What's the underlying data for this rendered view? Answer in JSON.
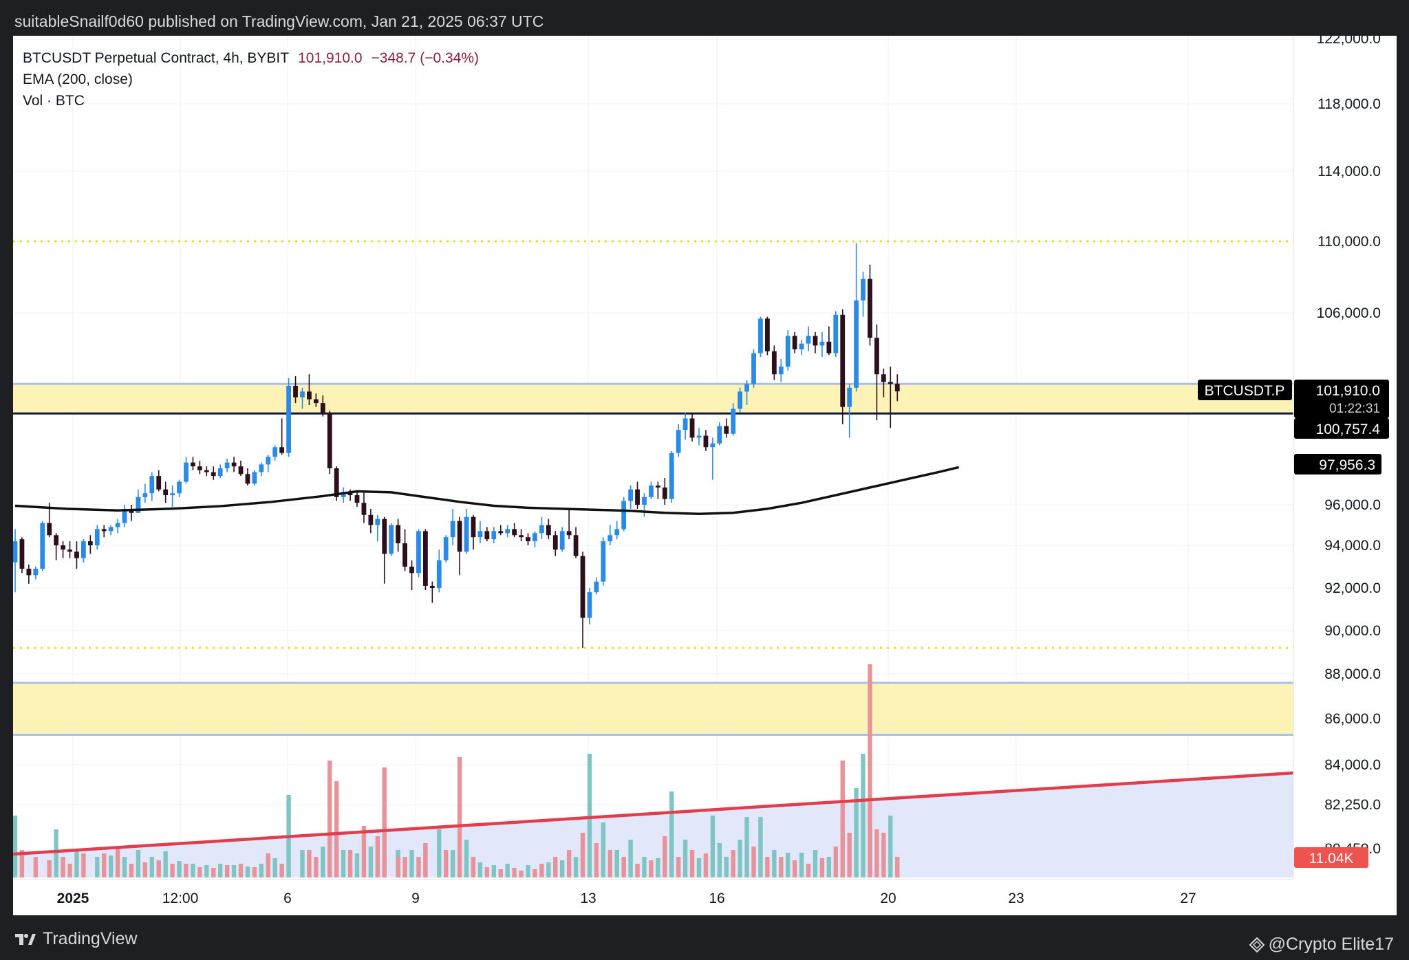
{
  "header": {
    "publisher": "suitableSnailf0d60 published on TradingView.com, Jan 21, 2025 06:37 UTC"
  },
  "legend": {
    "symbol": "BTCUSDT Perpetual Contract, 4h, BYBIT",
    "last": "101,910.0",
    "change": "−348.7 (−0.34%)",
    "ema": "EMA (200, close)",
    "vol": "Vol · BTC"
  },
  "footer": {
    "brand": "TradingView",
    "credit": "@Crypto Elite17",
    "brand_icon": "tradingview-logo-icon",
    "credit_icon": "diamond-icon"
  },
  "colors": {
    "up": "#2a8ae8",
    "down": "#2b0f1c",
    "vol_up": "#7fc5c3",
    "vol_down": "#e8939a",
    "zone": "#fdf3b7",
    "zone_line": "#a8bdf0",
    "support": "#0d1b3e",
    "ema": "#111111",
    "trend": "#e03e4d",
    "level": "#e6e02a",
    "last_label": "#000000",
    "vol_label": "#ef5350"
  },
  "chart_data": {
    "type": "candlestick",
    "timeframe": "4h",
    "symbol": "BTCUSDT.P",
    "exchange": "BYBIT",
    "y_ticks": [
      "122,000.0",
      "118,000.0",
      "114,000.0",
      "110,000.0",
      "106,000.0",
      "96,000.0",
      "94,000.0",
      "92,000.0",
      "90,000.0",
      "88,000.0",
      "86,000.0",
      "84,000.0",
      "82,250.0"
    ],
    "x_ticks": [
      "2025",
      "12:00",
      "6",
      "9",
      "13",
      "16",
      "20",
      "23",
      "27"
    ],
    "price_labels": {
      "symbol": "BTCUSDT.P",
      "last": "101,910.0",
      "countdown": "01:22:31",
      "support": "100,757.4",
      "ema": "97,956.3",
      "volume": "11.04K",
      "partial": "80,450.0"
    },
    "levels": {
      "dotted_high": 110000,
      "dotted_low": 89200,
      "support": 100757.4,
      "zone_upper": [
        100757.4,
        102300
      ],
      "zone_lower": [
        85300,
        87600
      ]
    },
    "ema_period": 200,
    "ema": [
      [
        0,
        95950
      ],
      [
        15,
        95800
      ],
      [
        30,
        95720
      ],
      [
        45,
        95800
      ],
      [
        60,
        95930
      ],
      [
        75,
        96150
      ],
      [
        90,
        96450
      ],
      [
        100,
        96700
      ],
      [
        110,
        96650
      ],
      [
        120,
        96400
      ],
      [
        130,
        96150
      ],
      [
        140,
        95950
      ],
      [
        150,
        95850
      ],
      [
        160,
        95800
      ],
      [
        170,
        95750
      ],
      [
        180,
        95700
      ],
      [
        190,
        95600
      ],
      [
        200,
        95550
      ],
      [
        210,
        95600
      ],
      [
        220,
        95800
      ],
      [
        230,
        96100
      ],
      [
        240,
        96500
      ],
      [
        250,
        96900
      ],
      [
        260,
        97300
      ],
      [
        270,
        97700
      ],
      [
        276,
        97956.3
      ]
    ],
    "candles": [
      [
        0,
        93200,
        94800,
        91800,
        94200
      ],
      [
        2,
        94300,
        94400,
        92700,
        92900
      ],
      [
        4,
        92900,
        93100,
        92200,
        92600
      ],
      [
        6,
        92600,
        93000,
        92400,
        92900
      ],
      [
        8,
        92900,
        95200,
        92800,
        95100
      ],
      [
        10,
        95100,
        96100,
        94400,
        94500
      ],
      [
        12,
        94500,
        94600,
        93300,
        94000
      ],
      [
        14,
        94000,
        94200,
        93400,
        93800
      ],
      [
        16,
        93800,
        94200,
        93400,
        93700
      ],
      [
        18,
        93700,
        94200,
        92900,
        93400
      ],
      [
        20,
        93400,
        94300,
        93200,
        94200
      ],
      [
        22,
        94200,
        94500,
        93600,
        94000
      ],
      [
        24,
        94000,
        95000,
        93800,
        94800
      ],
      [
        26,
        94800,
        95000,
        94400,
        94700
      ],
      [
        28,
        94700,
        95000,
        94500,
        94900
      ],
      [
        30,
        94900,
        95300,
        94600,
        95100
      ],
      [
        32,
        95100,
        96000,
        94900,
        95800
      ],
      [
        34,
        95800,
        96000,
        95200,
        95600
      ],
      [
        36,
        95600,
        96800,
        95600,
        96400
      ],
      [
        38,
        96400,
        97100,
        96100,
        96600
      ],
      [
        40,
        96600,
        97700,
        96200,
        97500
      ],
      [
        42,
        97500,
        97800,
        96700,
        96800
      ],
      [
        44,
        96800,
        97200,
        96100,
        96500
      ],
      [
        46,
        96500,
        97000,
        95900,
        96600
      ],
      [
        48,
        96600,
        97300,
        96400,
        97200
      ],
      [
        50,
        97200,
        98500,
        97100,
        98200
      ],
      [
        52,
        98200,
        98500,
        97800,
        98000
      ],
      [
        54,
        98000,
        98300,
        97600,
        97800
      ],
      [
        56,
        97800,
        98000,
        97500,
        97700
      ],
      [
        58,
        97700,
        98000,
        97300,
        97500
      ],
      [
        60,
        97500,
        98100,
        97400,
        97900
      ],
      [
        62,
        97900,
        98400,
        97700,
        98200
      ],
      [
        64,
        98200,
        98500,
        97700,
        98000
      ],
      [
        66,
        98000,
        98300,
        97500,
        97600
      ],
      [
        68,
        97600,
        97900,
        97000,
        97100
      ],
      [
        70,
        97100,
        97800,
        97000,
        97700
      ],
      [
        72,
        97700,
        98200,
        97500,
        98100
      ],
      [
        74,
        98100,
        98600,
        97700,
        98500
      ],
      [
        76,
        98500,
        99100,
        98300,
        99000
      ],
      [
        78,
        99000,
        100500,
        98600,
        98700
      ],
      [
        80,
        98700,
        102600,
        98500,
        102200
      ],
      [
        82,
        102200,
        102700,
        101300,
        101600
      ],
      [
        84,
        101600,
        102100,
        101000,
        101900
      ],
      [
        86,
        101900,
        102800,
        101200,
        101500
      ],
      [
        88,
        101500,
        101800,
        101100,
        101300
      ],
      [
        90,
        101300,
        101700,
        100600,
        100800
      ],
      [
        92,
        100800,
        100900,
        97600,
        97900
      ],
      [
        94,
        97900,
        98000,
        96200,
        96400
      ],
      [
        96,
        96400,
        96900,
        96100,
        96600
      ],
      [
        98,
        96600,
        96800,
        96200,
        96500
      ],
      [
        100,
        96500,
        96700,
        95900,
        96100
      ],
      [
        102,
        96100,
        96700,
        95100,
        95500
      ],
      [
        104,
        95500,
        95800,
        94600,
        95000
      ],
      [
        106,
        95000,
        95500,
        94200,
        95300
      ],
      [
        108,
        95300,
        95400,
        92200,
        93600
      ],
      [
        110,
        93600,
        95100,
        93500,
        95000
      ],
      [
        112,
        95000,
        95300,
        93700,
        94100
      ],
      [
        114,
        94100,
        94800,
        92800,
        93000
      ],
      [
        116,
        93000,
        93300,
        91900,
        92700
      ],
      [
        118,
        92700,
        94800,
        92500,
        94700
      ],
      [
        120,
        94700,
        94800,
        91900,
        92100
      ],
      [
        122,
        92100,
        92300,
        91300,
        92000
      ],
      [
        124,
        92000,
        93800,
        91800,
        93300
      ],
      [
        126,
        93300,
        94500,
        93200,
        94400
      ],
      [
        128,
        94400,
        95800,
        94000,
        95200
      ],
      [
        130,
        95200,
        95400,
        92600,
        93700
      ],
      [
        132,
        93700,
        95800,
        93600,
        95400
      ],
      [
        134,
        95400,
        95500,
        93800,
        94400
      ],
      [
        136,
        94400,
        95200,
        94100,
        94700
      ],
      [
        138,
        94700,
        94900,
        94200,
        94300
      ],
      [
        140,
        94300,
        94900,
        94100,
        94700
      ],
      [
        142,
        94700,
        95000,
        94500,
        94600
      ],
      [
        144,
        94600,
        95000,
        94400,
        94800
      ],
      [
        146,
        94800,
        95100,
        94400,
        94500
      ],
      [
        148,
        94500,
        94800,
        94200,
        94400
      ],
      [
        150,
        94400,
        94600,
        94000,
        94200
      ],
      [
        152,
        94200,
        94700,
        93900,
        94600
      ],
      [
        154,
        94600,
        95400,
        94300,
        95000
      ],
      [
        156,
        95000,
        95300,
        94300,
        94500
      ],
      [
        158,
        94500,
        94700,
        93500,
        93800
      ],
      [
        160,
        93800,
        94900,
        93700,
        94700
      ],
      [
        162,
        94700,
        95800,
        94300,
        94500
      ],
      [
        164,
        94500,
        94900,
        93400,
        93500
      ],
      [
        166,
        93500,
        93700,
        89200,
        90600
      ],
      [
        168,
        90600,
        92000,
        90300,
        91800
      ],
      [
        170,
        91800,
        92500,
        91700,
        92300
      ],
      [
        172,
        92300,
        94400,
        92100,
        94200
      ],
      [
        174,
        94200,
        95000,
        94000,
        94500
      ],
      [
        176,
        94500,
        95200,
        94300,
        94800
      ],
      [
        178,
        94800,
        96400,
        94700,
        96200
      ],
      [
        180,
        96200,
        97000,
        95800,
        96800
      ],
      [
        182,
        96800,
        97200,
        95800,
        96000
      ],
      [
        184,
        96000,
        96600,
        95400,
        96400
      ],
      [
        186,
        96400,
        97200,
        96300,
        97000
      ],
      [
        188,
        97000,
        97200,
        96300,
        96900
      ],
      [
        190,
        96900,
        97400,
        96000,
        96300
      ],
      [
        192,
        96300,
        98800,
        96100,
        98700
      ],
      [
        194,
        98700,
        100200,
        98500,
        99900
      ],
      [
        196,
        99900,
        100800,
        99400,
        100500
      ],
      [
        198,
        100500,
        100800,
        99300,
        99500
      ],
      [
        200,
        99500,
        100000,
        99100,
        99600
      ],
      [
        202,
        99600,
        99900,
        98800,
        99000
      ],
      [
        204,
        99000,
        99500,
        97300,
        99200
      ],
      [
        206,
        99200,
        100300,
        99100,
        100100
      ],
      [
        208,
        100100,
        100500,
        99500,
        99700
      ],
      [
        210,
        99700,
        101300,
        99600,
        101000
      ],
      [
        212,
        101000,
        102100,
        100800,
        101900
      ],
      [
        214,
        101900,
        102500,
        101200,
        102300
      ],
      [
        216,
        102300,
        104100,
        102100,
        103900
      ],
      [
        218,
        103900,
        105800,
        103700,
        105700
      ],
      [
        220,
        105700,
        105800,
        103800,
        104000
      ],
      [
        222,
        104000,
        104300,
        102500,
        102800
      ],
      [
        224,
        102800,
        103600,
        102400,
        103200
      ],
      [
        226,
        103200,
        105100,
        103000,
        104800
      ],
      [
        228,
        104800,
        105000,
        103900,
        104100
      ],
      [
        230,
        104100,
        104600,
        103800,
        104400
      ],
      [
        232,
        104400,
        105300,
        104000,
        104800
      ],
      [
        234,
        104800,
        105000,
        103900,
        104300
      ],
      [
        236,
        104300,
        105000,
        103700,
        104500
      ],
      [
        238,
        104500,
        105300,
        103800,
        103900
      ],
      [
        240,
        103900,
        106100,
        103700,
        105900
      ],
      [
        242,
        105900,
        106200,
        100200,
        101100
      ],
      [
        244,
        101100,
        102300,
        99500,
        102100
      ],
      [
        246,
        102100,
        109900,
        101900,
        106700
      ],
      [
        248,
        106700,
        108300,
        105800,
        107900
      ],
      [
        250,
        107900,
        108700,
        104300,
        104700
      ],
      [
        252,
        104700,
        105400,
        100400,
        102800
      ],
      [
        254,
        102800,
        103100,
        101600,
        102400
      ],
      [
        256,
        102400,
        103200,
        100000,
        102300
      ],
      [
        258,
        102300,
        102800,
        101400,
        101910
      ]
    ],
    "volume_up": [
      [
        0,
        90
      ],
      [
        12,
        70
      ],
      [
        18,
        40
      ],
      [
        24,
        30
      ],
      [
        28,
        32
      ],
      [
        32,
        30
      ],
      [
        36,
        40
      ],
      [
        40,
        30
      ],
      [
        44,
        38
      ],
      [
        48,
        24
      ],
      [
        52,
        20
      ],
      [
        56,
        18
      ],
      [
        60,
        20
      ],
      [
        64,
        18
      ],
      [
        68,
        16
      ],
      [
        72,
        20
      ],
      [
        76,
        28
      ],
      [
        80,
        120
      ],
      [
        84,
        40
      ],
      [
        90,
        45
      ],
      [
        96,
        40
      ],
      [
        100,
        35
      ],
      [
        104,
        45
      ],
      [
        108,
        30
      ],
      [
        112,
        40
      ],
      [
        116,
        40
      ],
      [
        120,
        50
      ],
      [
        124,
        70
      ],
      [
        128,
        40
      ],
      [
        132,
        55
      ],
      [
        136,
        22
      ],
      [
        140,
        18
      ],
      [
        144,
        20
      ],
      [
        150,
        18
      ],
      [
        156,
        22
      ],
      [
        160,
        25
      ],
      [
        164,
        30
      ],
      [
        166,
        30
      ],
      [
        168,
        180
      ],
      [
        172,
        80
      ],
      [
        176,
        40
      ],
      [
        180,
        55
      ],
      [
        184,
        30
      ],
      [
        188,
        28
      ],
      [
        192,
        125
      ],
      [
        196,
        55
      ],
      [
        200,
        28
      ],
      [
        204,
        90
      ],
      [
        206,
        50
      ],
      [
        208,
        30
      ],
      [
        212,
        55
      ],
      [
        214,
        88
      ],
      [
        218,
        88
      ],
      [
        222,
        40
      ],
      [
        226,
        36
      ],
      [
        230,
        36
      ],
      [
        234,
        40
      ],
      [
        238,
        30
      ],
      [
        246,
        130
      ],
      [
        248,
        180
      ],
      [
        256,
        90
      ]
    ],
    "volume_down": [
      [
        2,
        40
      ],
      [
        6,
        30
      ],
      [
        10,
        25
      ],
      [
        14,
        30
      ],
      [
        16,
        20
      ],
      [
        20,
        35
      ],
      [
        26,
        35
      ],
      [
        30,
        45
      ],
      [
        34,
        20
      ],
      [
        38,
        22
      ],
      [
        42,
        25
      ],
      [
        46,
        20
      ],
      [
        50,
        20
      ],
      [
        54,
        15
      ],
      [
        58,
        14
      ],
      [
        62,
        18
      ],
      [
        66,
        20
      ],
      [
        70,
        15
      ],
      [
        74,
        35
      ],
      [
        78,
        20
      ],
      [
        86,
        40
      ],
      [
        88,
        30
      ],
      [
        92,
        170
      ],
      [
        94,
        140
      ],
      [
        98,
        40
      ],
      [
        102,
        75
      ],
      [
        106,
        60
      ],
      [
        108,
        160
      ],
      [
        112,
        30
      ],
      [
        114,
        30
      ],
      [
        118,
        30
      ],
      [
        120,
        50
      ],
      [
        126,
        40
      ],
      [
        130,
        175
      ],
      [
        134,
        30
      ],
      [
        138,
        15
      ],
      [
        142,
        12
      ],
      [
        146,
        14
      ],
      [
        148,
        10
      ],
      [
        152,
        12
      ],
      [
        154,
        20
      ],
      [
        158,
        30
      ],
      [
        162,
        40
      ],
      [
        166,
        65
      ],
      [
        170,
        50
      ],
      [
        174,
        40
      ],
      [
        178,
        30
      ],
      [
        182,
        20
      ],
      [
        186,
        25
      ],
      [
        190,
        60
      ],
      [
        194,
        30
      ],
      [
        198,
        40
      ],
      [
        202,
        35
      ],
      [
        210,
        40
      ],
      [
        216,
        45
      ],
      [
        220,
        30
      ],
      [
        224,
        30
      ],
      [
        228,
        25
      ],
      [
        232,
        20
      ],
      [
        236,
        28
      ],
      [
        240,
        45
      ],
      [
        242,
        170
      ],
      [
        244,
        65
      ],
      [
        250,
        310
      ],
      [
        252,
        70
      ],
      [
        254,
        65
      ],
      [
        258,
        30
      ]
    ]
  }
}
